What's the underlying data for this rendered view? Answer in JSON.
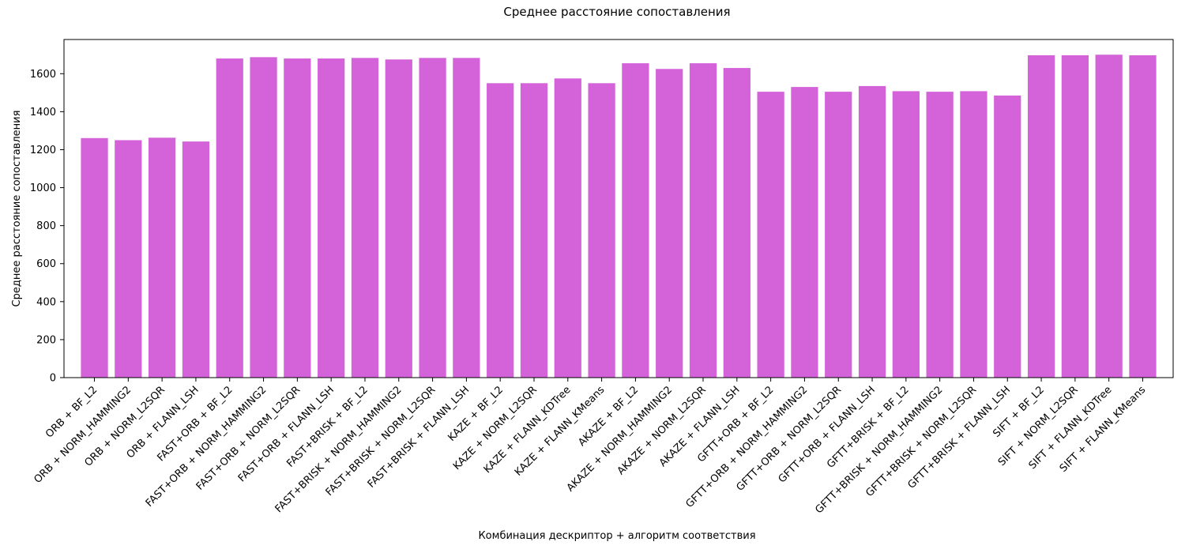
{
  "chart_data": {
    "type": "bar",
    "title": "Среднее расстояние сопоставления",
    "xlabel": "Комбинация дескриптор + алгоритм соответствия",
    "ylabel": "Среднее расстояние сопоставления",
    "ylim": [
      0,
      1780
    ],
    "yticks": [
      0,
      200,
      400,
      600,
      800,
      1000,
      1200,
      1400,
      1600
    ],
    "bar_color": "#d463d9",
    "grid": false,
    "categories": [
      "ORB + BF_L2",
      "ORB + NORM_HAMMING2",
      "ORB + NORM_L2SQR",
      "ORB + FLANN_LSH",
      "FAST+ORB + BF_L2",
      "FAST+ORB + NORM_HAMMING2",
      "FAST+ORB + NORM_L2SQR",
      "FAST+ORB + FLANN_LSH",
      "FAST+BRISK + BF_L2",
      "FAST+BRISK + NORM_HAMMING2",
      "FAST+BRISK + NORM_L2SQR",
      "FAST+BRISK + FLANN_LSH",
      "KAZE + BF_L2",
      "KAZE + NORM_L2SQR",
      "KAZE + FLANN_KDTree",
      "KAZE + FLANN_KMeans",
      "AKAZE + BF_L2",
      "AKAZE + NORM_HAMMING2",
      "AKAZE + NORM_L2SQR",
      "AKAZE + FLANN_LSH",
      "GFTT+ORB + BF_L2",
      "GFTT+ORB + NORM_HAMMING2",
      "GFTT+ORB + NORM_L2SQR",
      "GFTT+ORB + FLANN_LSH",
      "GFTT+BRISK + BF_L2",
      "GFTT+BRISK + NORM_HAMMING2",
      "GFTT+BRISK + NORM_L2SQR",
      "GFTT+BRISK + FLANN_LSH",
      "SIFT + BF_L2",
      "SIFT + NORM_L2SQR",
      "SIFT + FLANN_KDTree",
      "SIFT + FLANN_KMeans"
    ],
    "values": [
      1261,
      1250,
      1263,
      1243,
      1680,
      1687,
      1680,
      1680,
      1683,
      1675,
      1683,
      1683,
      1550,
      1550,
      1575,
      1550,
      1655,
      1625,
      1655,
      1630,
      1505,
      1530,
      1505,
      1535,
      1508,
      1505,
      1508,
      1485,
      1697,
      1697,
      1700,
      1697
    ]
  }
}
